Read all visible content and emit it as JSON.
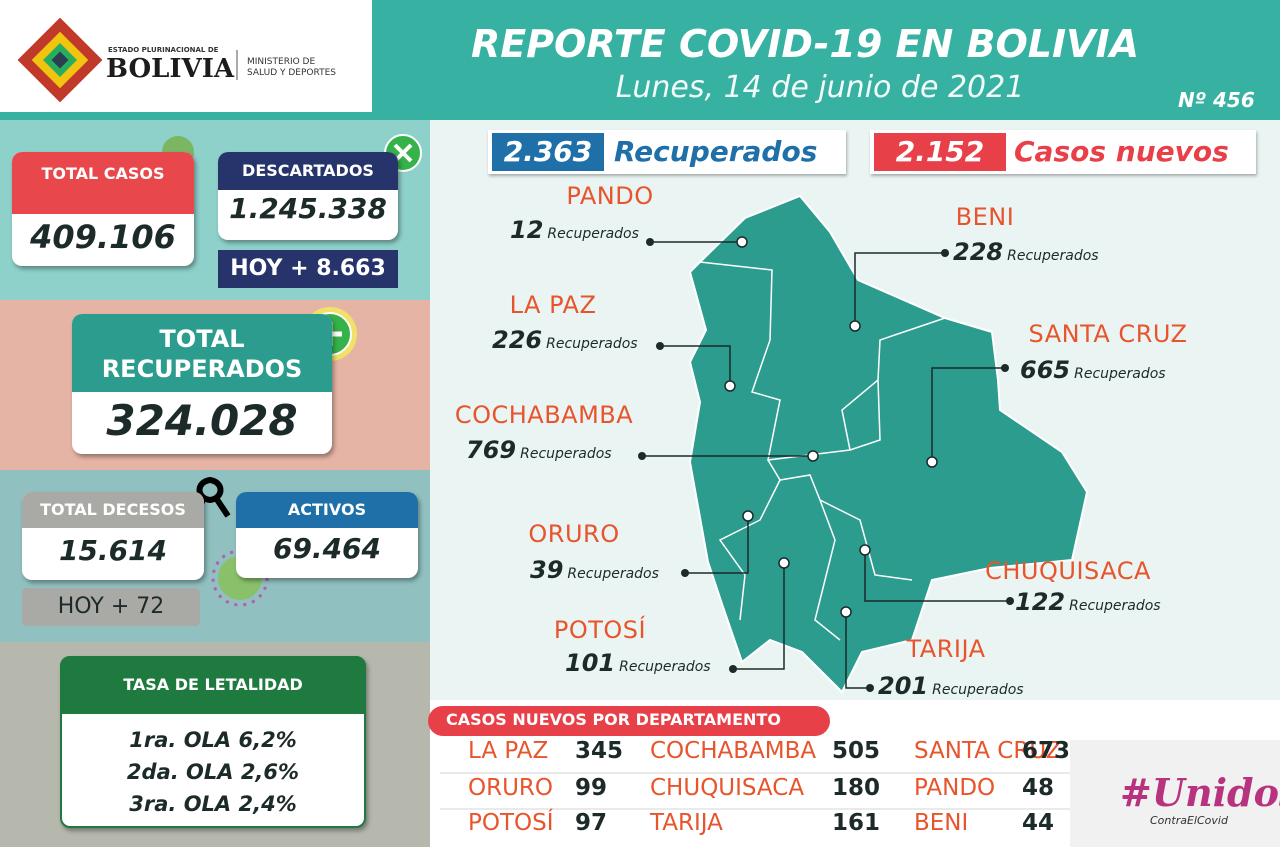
{
  "header": {
    "logo_top": "ESTADO PLURINACIONAL DE",
    "logo_main": "BOLIVIA",
    "ministry": [
      "MINISTERIO DE",
      "SALUD Y DEPORTES"
    ],
    "title": "REPORTE COVID-19 EN BOLIVIA",
    "date": "Lunes, 14 de junio de 2021",
    "number": "Nº 456"
  },
  "summary": {
    "total_cases": {
      "label": "TOTAL CASOS",
      "value": "409.106"
    },
    "discarded": {
      "label": "DESCARTADOS",
      "value": "1.245.338",
      "today": "HOY + 8.663"
    },
    "total_recovered": {
      "label": "TOTAL RECUPERADOS",
      "value": "324.028"
    },
    "total_deaths": {
      "label": "TOTAL DECESOS",
      "value": "15.614",
      "today": "HOY + 72"
    },
    "active": {
      "label": "ACTIVOS",
      "value": "69.464"
    }
  },
  "lethality": {
    "label": "TASA DE LETALIDAD",
    "lines": [
      "1ra. OLA 6,2%",
      "2da. OLA 2,6%",
      "3ra. OLA 2,4%"
    ]
  },
  "daily": {
    "recovered": {
      "value": "2.363",
      "label": "Recuperados"
    },
    "new_cases": {
      "value": "2.152",
      "label": "Casos nuevos"
    }
  },
  "departments": [
    {
      "name": "PANDO",
      "recovered": "12",
      "label": "Recuperados"
    },
    {
      "name": "BENI",
      "recovered": "228",
      "label": "Recuperados"
    },
    {
      "name": "LA PAZ",
      "recovered": "226",
      "label": "Recuperados"
    },
    {
      "name": "SANTA CRUZ",
      "recovered": "665",
      "label": "Recuperados"
    },
    {
      "name": "COCHABAMBA",
      "recovered": "769",
      "label": "Recuperados"
    },
    {
      "name": "ORURO",
      "recovered": "39",
      "label": "Recuperados"
    },
    {
      "name": "CHUQUISACA",
      "recovered": "122",
      "label": "Recuperados"
    },
    {
      "name": "POTOSÍ",
      "recovered": "101",
      "label": "Recuperados"
    },
    {
      "name": "TARIJA",
      "recovered": "201",
      "label": "Recuperados"
    }
  ],
  "new_cases_table": {
    "title": "CASOS NUEVOS POR DEPARTAMENTO",
    "rows": [
      [
        [
          "LA PAZ",
          "345"
        ],
        [
          "COCHABAMBA",
          "505"
        ],
        [
          "SANTA CRUZ",
          "673"
        ]
      ],
      [
        [
          "ORURO",
          "99"
        ],
        [
          "CHUQUISACA",
          "180"
        ],
        [
          "PANDO",
          "48"
        ]
      ],
      [
        [
          "POTOSÍ",
          "97"
        ],
        [
          "TARIJA",
          "161"
        ],
        [
          "BENI",
          "44"
        ]
      ]
    ]
  },
  "campaign": {
    "tag": "#Unidos",
    "sub": "ContraElCovid"
  }
}
